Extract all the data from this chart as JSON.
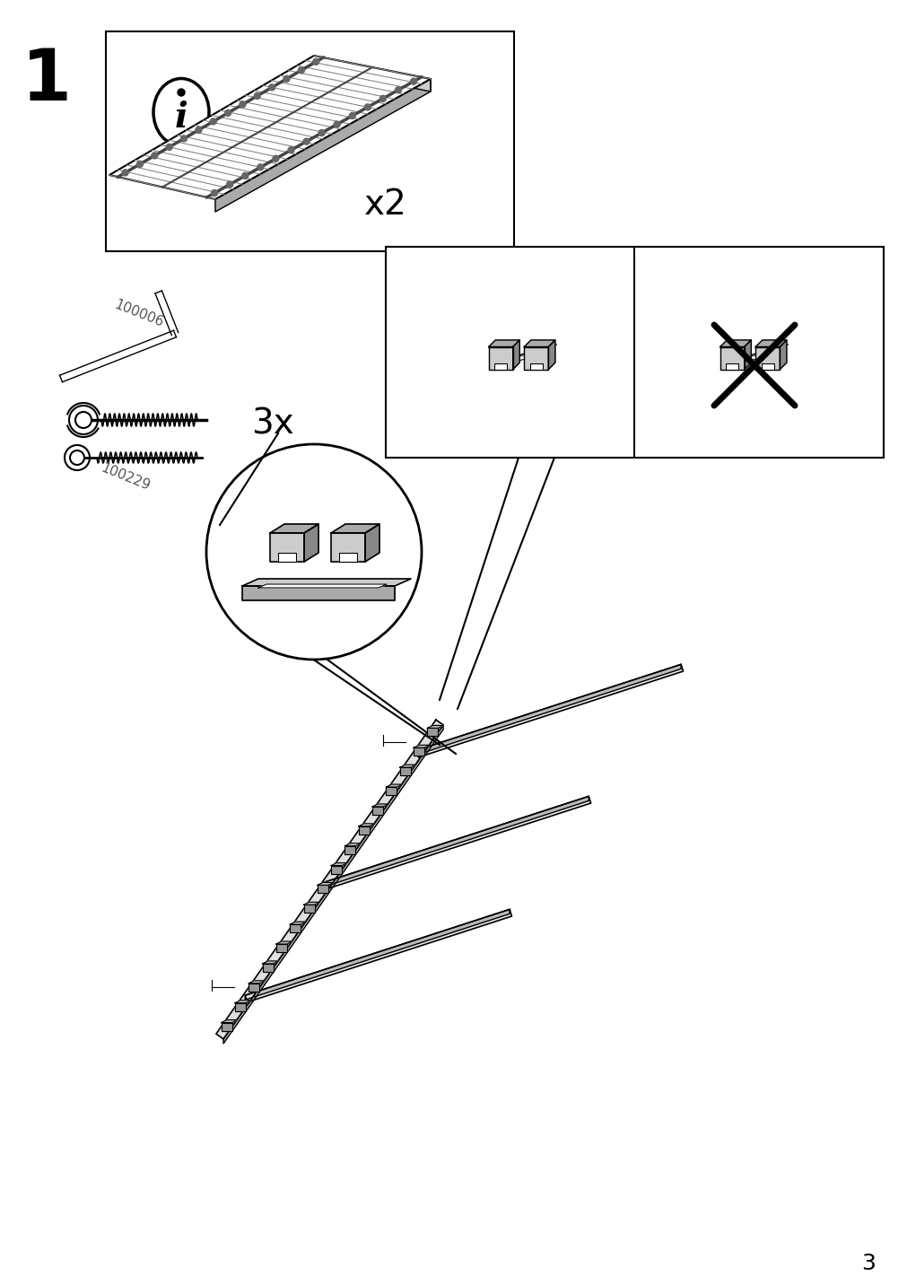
{
  "background_color": "#ffffff",
  "page_number": "3",
  "step_number": "1",
  "part_label_1": "100006",
  "part_label_2": "100229",
  "multiply_label_1": "x2",
  "multiply_label_2": "3x",
  "line_color": "#000000",
  "gray_light": "#cccccc",
  "gray_mid": "#aaaaaa",
  "gray_dark": "#777777",
  "gray_fill": "#bbbbbb"
}
